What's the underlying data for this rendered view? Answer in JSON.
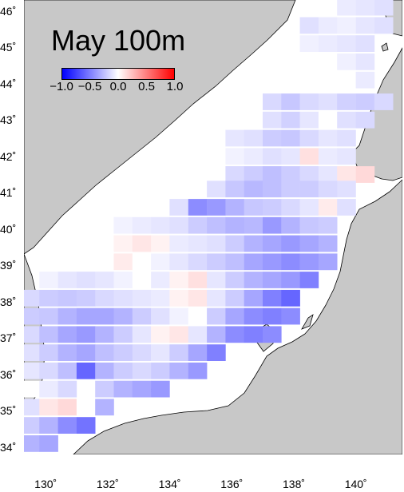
{
  "map": {
    "title": "May 100m",
    "colors": {
      "land": "#c8c8c8",
      "sea": "#ffffff",
      "negative": "#0000ff",
      "positive": "#ff0000",
      "neutral": "#ffffff"
    },
    "colorbar": {
      "range": [
        -1.0,
        1.0
      ],
      "tick_labels": [
        "−1.0",
        "−0.5",
        "0.0",
        "0.5",
        "1.0"
      ],
      "tick_values": [
        -1.0,
        -0.5,
        0.0,
        0.5,
        1.0
      ]
    },
    "lat_labels": [
      "46˚",
      "45˚",
      "44˚",
      "43˚",
      "42˚",
      "41˚",
      "40˚",
      "39˚",
      "38˚",
      "37˚",
      "36˚",
      "35˚",
      "34˚"
    ],
    "lon_labels": [
      "130˚",
      "132˚",
      "134˚",
      "136˚",
      "138˚",
      "140˚"
    ]
  },
  "chart_data": {
    "type": "heatmap",
    "title": "May 100m",
    "x_unit": "degrees east longitude",
    "y_unit": "degrees north latitude",
    "xlim": [
      129.3,
      141.5
    ],
    "ylim": [
      33.8,
      46.3
    ],
    "cell_size_deg": [
      0.66,
      0.5
    ],
    "value_range": [
      -1.0,
      1.0
    ],
    "rows": [
      {
        "lat": 46.1,
        "cells": [
          [
            139.7,
            -0.08
          ],
          [
            140.3,
            -0.1
          ],
          [
            140.9,
            -0.12
          ]
        ]
      },
      {
        "lat": 45.6,
        "cells": [
          [
            138.5,
            -0.12
          ],
          [
            139.1,
            -0.08
          ],
          [
            139.7,
            -0.06
          ],
          [
            140.3,
            -0.1
          ],
          [
            140.9,
            -0.12
          ]
        ]
      },
      {
        "lat": 45.1,
        "cells": [
          [
            138.5,
            -0.06
          ],
          [
            139.1,
            -0.08
          ],
          [
            139.7,
            -0.1
          ],
          [
            140.3,
            -0.12
          ]
        ]
      },
      {
        "lat": 44.6,
        "cells": [
          [
            139.7,
            -0.06
          ],
          [
            140.3,
            -0.1
          ]
        ]
      },
      {
        "lat": 44.1,
        "cells": [
          [
            140.3,
            -0.08
          ]
        ]
      },
      {
        "lat": 43.5,
        "cells": [
          [
            137.3,
            -0.15
          ],
          [
            137.9,
            -0.22
          ],
          [
            138.5,
            -0.15
          ],
          [
            139.1,
            -0.12
          ],
          [
            139.7,
            -0.18
          ],
          [
            140.3,
            -0.2
          ],
          [
            140.9,
            -0.15
          ]
        ]
      },
      {
        "lat": 43.0,
        "cells": [
          [
            137.3,
            -0.12
          ],
          [
            137.9,
            -0.18
          ],
          [
            138.5,
            -0.1
          ],
          [
            139.1,
            0.0
          ],
          [
            139.7,
            -0.12
          ],
          [
            140.3,
            -0.15
          ]
        ]
      },
      {
        "lat": 42.5,
        "cells": [
          [
            136.1,
            -0.1
          ],
          [
            136.7,
            -0.12
          ],
          [
            137.3,
            -0.2
          ],
          [
            137.9,
            -0.22
          ],
          [
            138.5,
            -0.15
          ],
          [
            139.1,
            -0.1
          ],
          [
            139.7,
            -0.12
          ]
        ]
      },
      {
        "lat": 42.0,
        "cells": [
          [
            135.5,
            0.0
          ],
          [
            136.1,
            -0.05
          ],
          [
            136.7,
            -0.08
          ],
          [
            137.3,
            -0.12
          ],
          [
            137.9,
            -0.1
          ],
          [
            138.5,
            0.12
          ],
          [
            139.1,
            -0.08
          ],
          [
            139.7,
            -0.1
          ]
        ]
      },
      {
        "lat": 41.5,
        "cells": [
          [
            136.1,
            -0.15
          ],
          [
            136.7,
            -0.2
          ],
          [
            137.3,
            -0.25
          ],
          [
            137.9,
            -0.2
          ],
          [
            138.5,
            -0.15
          ],
          [
            139.1,
            -0.1
          ],
          [
            139.7,
            0.1
          ],
          [
            140.3,
            0.15
          ]
        ]
      },
      {
        "lat": 41.1,
        "cells": [
          [
            135.5,
            -0.12
          ],
          [
            136.1,
            -0.22
          ],
          [
            136.7,
            -0.28
          ],
          [
            137.3,
            -0.25
          ],
          [
            137.9,
            -0.2
          ],
          [
            138.5,
            -0.2
          ],
          [
            139.1,
            -0.15
          ],
          [
            139.7,
            -0.12
          ]
        ]
      },
      {
        "lat": 40.6,
        "cells": [
          [
            134.3,
            -0.12
          ],
          [
            134.9,
            -0.45
          ],
          [
            135.5,
            -0.4
          ],
          [
            136.1,
            -0.3
          ],
          [
            136.7,
            -0.22
          ],
          [
            137.3,
            -0.2
          ],
          [
            137.9,
            -0.15
          ],
          [
            138.5,
            -0.1
          ],
          [
            139.1,
            0.08
          ],
          [
            139.7,
            -0.12
          ]
        ]
      },
      {
        "lat": 40.1,
        "cells": [
          [
            132.5,
            -0.05
          ],
          [
            133.1,
            -0.08
          ],
          [
            133.7,
            -0.1
          ],
          [
            134.3,
            -0.12
          ],
          [
            134.9,
            -0.2
          ],
          [
            135.5,
            -0.25
          ],
          [
            136.1,
            -0.3
          ],
          [
            136.7,
            -0.28
          ],
          [
            137.3,
            -0.4
          ],
          [
            137.9,
            -0.3
          ],
          [
            138.5,
            -0.22
          ],
          [
            139.1,
            -0.2
          ]
        ]
      },
      {
        "lat": 39.6,
        "cells": [
          [
            131.3,
            0.0
          ],
          [
            132.5,
            0.05
          ],
          [
            133.1,
            0.1
          ],
          [
            133.7,
            0.05
          ],
          [
            134.3,
            -0.08
          ],
          [
            134.9,
            -0.1
          ],
          [
            135.5,
            -0.12
          ],
          [
            136.1,
            -0.2
          ],
          [
            136.7,
            -0.3
          ],
          [
            137.3,
            -0.35
          ],
          [
            137.9,
            -0.4
          ],
          [
            138.5,
            -0.35
          ],
          [
            139.1,
            -0.3
          ]
        ]
      },
      {
        "lat": 39.1,
        "cells": [
          [
            132.5,
            0.08
          ],
          [
            133.1,
            0.0
          ],
          [
            133.7,
            -0.05
          ],
          [
            134.3,
            -0.1
          ],
          [
            134.9,
            -0.15
          ],
          [
            135.5,
            -0.2
          ],
          [
            136.1,
            -0.25
          ],
          [
            136.7,
            -0.35
          ],
          [
            137.3,
            -0.4
          ],
          [
            137.9,
            -0.45
          ],
          [
            138.5,
            -0.4
          ],
          [
            139.1,
            -0.35
          ]
        ]
      },
      {
        "lat": 38.6,
        "cells": [
          [
            130.1,
            -0.05
          ],
          [
            130.7,
            -0.1
          ],
          [
            131.3,
            -0.12
          ],
          [
            131.9,
            -0.1
          ],
          [
            132.5,
            -0.05
          ],
          [
            133.1,
            0.0
          ],
          [
            133.7,
            -0.08
          ],
          [
            134.3,
            0.05
          ],
          [
            134.9,
            0.12
          ],
          [
            135.5,
            -0.1
          ],
          [
            136.1,
            -0.2
          ],
          [
            136.7,
            -0.3
          ],
          [
            137.3,
            -0.35
          ],
          [
            137.9,
            -0.4
          ],
          [
            138.5,
            -0.5
          ]
        ]
      },
      {
        "lat": 38.1,
        "cells": [
          [
            129.5,
            -0.15
          ],
          [
            130.1,
            -0.2
          ],
          [
            130.7,
            -0.22
          ],
          [
            131.3,
            -0.2
          ],
          [
            131.9,
            -0.15
          ],
          [
            132.5,
            -0.12
          ],
          [
            133.1,
            -0.1
          ],
          [
            133.7,
            -0.08
          ],
          [
            134.3,
            0.05
          ],
          [
            134.9,
            0.1
          ],
          [
            135.5,
            -0.1
          ],
          [
            136.1,
            -0.2
          ],
          [
            136.7,
            -0.35
          ],
          [
            137.3,
            -0.5
          ],
          [
            137.9,
            -0.6
          ]
        ]
      },
      {
        "lat": 37.6,
        "cells": [
          [
            129.5,
            -0.2
          ],
          [
            130.1,
            -0.22
          ],
          [
            130.7,
            -0.3
          ],
          [
            131.3,
            -0.35
          ],
          [
            131.9,
            -0.35
          ],
          [
            132.5,
            -0.3
          ],
          [
            133.1,
            -0.2
          ],
          [
            133.7,
            -0.12
          ],
          [
            134.3,
            -0.05
          ],
          [
            134.9,
            0.0
          ],
          [
            135.5,
            -0.2
          ],
          [
            136.1,
            -0.35
          ],
          [
            136.7,
            -0.45
          ],
          [
            137.3,
            -0.5
          ],
          [
            137.9,
            -0.45
          ]
        ]
      },
      {
        "lat": 37.1,
        "cells": [
          [
            129.5,
            -0.15
          ],
          [
            130.1,
            -0.25
          ],
          [
            130.7,
            -0.35
          ],
          [
            131.3,
            -0.4
          ],
          [
            131.9,
            -0.3
          ],
          [
            132.5,
            -0.2
          ],
          [
            133.1,
            -0.1
          ],
          [
            133.7,
            0.05
          ],
          [
            134.3,
            0.1
          ],
          [
            134.9,
            -0.1
          ],
          [
            135.5,
            -0.3
          ],
          [
            136.1,
            -0.45
          ],
          [
            136.7,
            -0.5
          ],
          [
            137.3,
            -0.45
          ]
        ]
      },
      {
        "lat": 36.6,
        "cells": [
          [
            129.5,
            -0.12
          ],
          [
            130.1,
            -0.2
          ],
          [
            130.7,
            -0.3
          ],
          [
            131.3,
            -0.35
          ],
          [
            131.9,
            -0.25
          ],
          [
            132.5,
            -0.2
          ],
          [
            133.1,
            -0.15
          ],
          [
            133.7,
            -0.1
          ],
          [
            134.3,
            -0.2
          ],
          [
            134.9,
            -0.35
          ],
          [
            135.5,
            -0.5
          ]
        ]
      },
      {
        "lat": 36.1,
        "cells": [
          [
            129.5,
            -0.1
          ],
          [
            130.1,
            -0.15
          ],
          [
            130.7,
            -0.25
          ],
          [
            131.3,
            -0.6
          ],
          [
            131.9,
            -0.3
          ],
          [
            132.5,
            -0.2
          ],
          [
            133.1,
            -0.15
          ],
          [
            133.7,
            -0.2
          ],
          [
            134.3,
            -0.3
          ],
          [
            134.9,
            -0.4
          ]
        ]
      },
      {
        "lat": 35.6,
        "cells": [
          [
            129.5,
            0.0
          ],
          [
            130.1,
            -0.08
          ],
          [
            130.7,
            -0.15
          ],
          [
            131.9,
            -0.2
          ],
          [
            132.5,
            -0.3
          ],
          [
            133.1,
            -0.35
          ],
          [
            133.7,
            -0.4
          ]
        ]
      },
      {
        "lat": 35.1,
        "cells": [
          [
            129.5,
            -0.12
          ],
          [
            130.1,
            0.1
          ],
          [
            130.7,
            0.15
          ],
          [
            131.3,
            0.0
          ],
          [
            131.9,
            -0.3
          ]
        ]
      },
      {
        "lat": 34.6,
        "cells": [
          [
            129.5,
            -0.2
          ],
          [
            130.1,
            -0.3
          ],
          [
            130.7,
            -0.45
          ],
          [
            131.3,
            -0.55
          ]
        ]
      },
      {
        "lat": 34.1,
        "cells": [
          [
            129.5,
            -0.3
          ],
          [
            130.1,
            -0.35
          ]
        ]
      }
    ]
  }
}
